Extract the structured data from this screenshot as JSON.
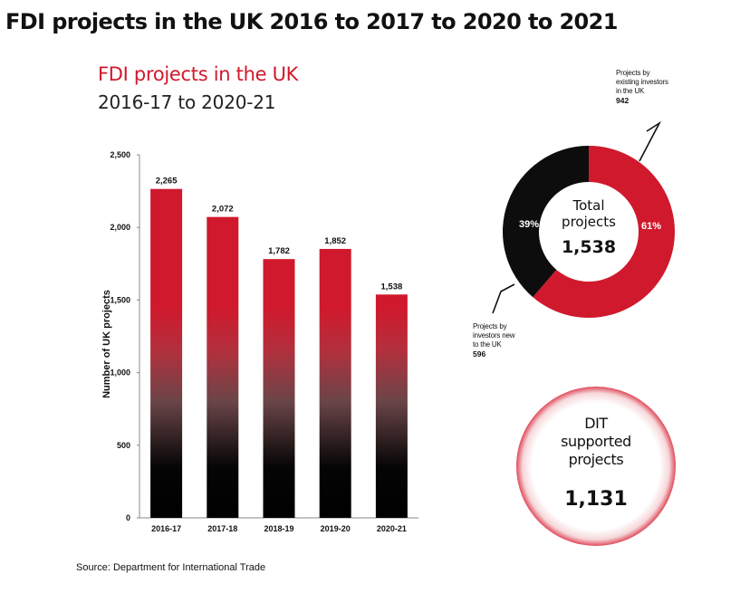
{
  "page_title": "FDI projects in the UK 2016 to 2017 to 2020 to 2021",
  "source": "Source: Department for International Trade",
  "colors": {
    "accent_red": "#d0192c",
    "bar_gradient_bottom": "#000000",
    "donut_new": "#0d0d0d"
  },
  "chart_data": [
    {
      "type": "bar",
      "title": "FDI projects in the UK",
      "subtitle": "2016-17 to 2020-21",
      "xlabel": "",
      "ylabel": "Number of UK projects",
      "categories": [
        "2016-17",
        "2017-18",
        "2018-19",
        "2019-20",
        "2020-21"
      ],
      "values": [
        2265,
        2072,
        1782,
        1852,
        1538
      ],
      "value_labels": [
        "2,265",
        "2,072",
        "1,782",
        "1,852",
        "1,538"
      ],
      "ylim": [
        0,
        2500
      ],
      "yticks": [
        0,
        500,
        1000,
        1500,
        2000,
        2500
      ],
      "ytick_labels": [
        "0",
        "500",
        "1,000",
        "1,500",
        "2,000",
        "2,500"
      ],
      "grid": false
    },
    {
      "type": "pie",
      "style": "donut",
      "center_label": "Total projects",
      "center_value": "1,538",
      "slices": [
        {
          "label_lines": [
            "Projects by",
            "existing investors",
            "in the UK"
          ],
          "value": 942,
          "value_label": "942",
          "percent": 61,
          "percent_label": "61%",
          "color": "#d0192c"
        },
        {
          "label_lines": [
            "Projects by",
            "investors new",
            "to the UK"
          ],
          "value": 596,
          "value_label": "596",
          "percent": 39,
          "percent_label": "39%",
          "color": "#0d0d0d"
        }
      ]
    }
  ],
  "dit_callout": {
    "label_lines": [
      "DIT",
      "supported",
      "projects"
    ],
    "value": "1,131"
  }
}
